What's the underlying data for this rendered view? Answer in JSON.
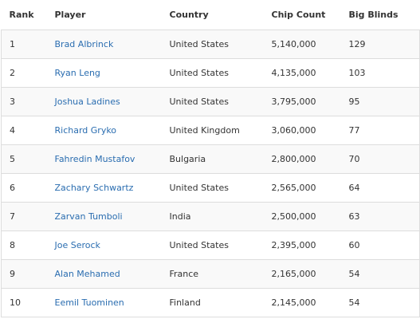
{
  "table": {
    "headers": {
      "rank": "Rank",
      "player": "Player",
      "country": "Country",
      "chip_count": "Chip Count",
      "big_blinds": "Big Blinds"
    },
    "rows": [
      {
        "rank": "1",
        "player": "Brad Albrinck",
        "country": "United States",
        "chip_count": "5,140,000",
        "big_blinds": "129"
      },
      {
        "rank": "2",
        "player": "Ryan Leng",
        "country": "United States",
        "chip_count": "4,135,000",
        "big_blinds": "103"
      },
      {
        "rank": "3",
        "player": "Joshua Ladines",
        "country": "United States",
        "chip_count": "3,795,000",
        "big_blinds": "95"
      },
      {
        "rank": "4",
        "player": "Richard Gryko",
        "country": "United Kingdom",
        "chip_count": "3,060,000",
        "big_blinds": "77"
      },
      {
        "rank": "5",
        "player": "Fahredin Mustafov",
        "country": "Bulgaria",
        "chip_count": "2,800,000",
        "big_blinds": "70"
      },
      {
        "rank": "6",
        "player": "Zachary Schwartz",
        "country": "United States",
        "chip_count": "2,565,000",
        "big_blinds": "64"
      },
      {
        "rank": "7",
        "player": "Zarvan Tumboli",
        "country": "India",
        "chip_count": "2,500,000",
        "big_blinds": "63"
      },
      {
        "rank": "8",
        "player": "Joe Serock",
        "country": "United States",
        "chip_count": "2,395,000",
        "big_blinds": "60"
      },
      {
        "rank": "9",
        "player": "Alan Mehamed",
        "country": "France",
        "chip_count": "2,165,000",
        "big_blinds": "54"
      },
      {
        "rank": "10",
        "player": "Eemil Tuominen",
        "country": "Finland",
        "chip_count": "2,145,000",
        "big_blinds": "54"
      }
    ]
  },
  "colors": {
    "link": "#2a6db0",
    "text": "#333333",
    "row_stripe": "#f9f9f9",
    "border": "#dddddd"
  }
}
